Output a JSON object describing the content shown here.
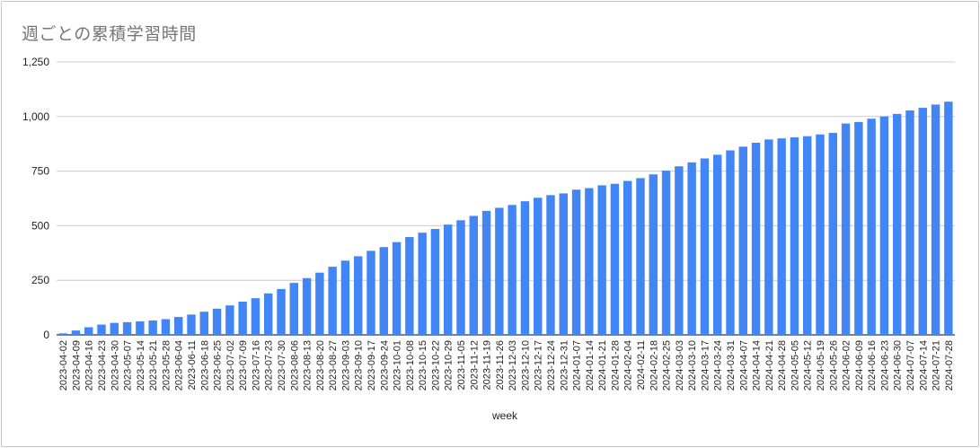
{
  "chart_data": {
    "type": "bar",
    "title": "週ごとの累積学習時間",
    "xlabel": "week",
    "ylabel": "",
    "ylim": [
      0,
      1250
    ],
    "yticks": [
      0,
      250,
      500,
      750,
      1000,
      1250
    ],
    "ytick_labels": [
      "0",
      "250",
      "500",
      "750",
      "1,000",
      "1,250"
    ],
    "grid": true,
    "legend": "none",
    "bar_color": "#4285f4",
    "categories": [
      "2023-04-02",
      "2023-04-09",
      "2023-04-16",
      "2023-04-23",
      "2023-04-30",
      "2023-05-07",
      "2023-05-14",
      "2023-05-21",
      "2023-05-28",
      "2023-06-04",
      "2023-06-11",
      "2023-06-18",
      "2023-06-25",
      "2023-07-02",
      "2023-07-09",
      "2023-07-16",
      "2023-07-23",
      "2023-07-30",
      "2023-08-06",
      "2023-08-13",
      "2023-08-20",
      "2023-08-27",
      "2023-09-03",
      "2023-09-10",
      "2023-09-17",
      "2023-09-24",
      "2023-10-01",
      "2023-10-08",
      "2023-10-15",
      "2023-10-22",
      "2023-10-29",
      "2023-11-05",
      "2023-11-12",
      "2023-11-19",
      "2023-11-26",
      "2023-12-03",
      "2023-12-10",
      "2023-12-17",
      "2023-12-24",
      "2023-12-31",
      "2024-01-07",
      "2024-01-14",
      "2024-01-21",
      "2024-01-28",
      "2024-02-04",
      "2024-02-11",
      "2024-02-18",
      "2024-02-25",
      "2024-03-03",
      "2024-03-10",
      "2024-03-17",
      "2024-03-24",
      "2024-03-31",
      "2024-04-07",
      "2024-04-14",
      "2024-04-21",
      "2024-04-28",
      "2024-05-05",
      "2024-05-12",
      "2024-05-19",
      "2024-05-26",
      "2024-06-02",
      "2024-06-09",
      "2024-06-16",
      "2024-06-23",
      "2024-06-30",
      "2024-07-07",
      "2024-07-14",
      "2024-07-21",
      "2024-07-28"
    ],
    "values": [
      7,
      20,
      35,
      47,
      55,
      58,
      62,
      66,
      72,
      82,
      93,
      106,
      120,
      135,
      152,
      168,
      190,
      210,
      238,
      260,
      285,
      312,
      340,
      360,
      385,
      402,
      425,
      448,
      468,
      485,
      505,
      525,
      545,
      568,
      582,
      595,
      612,
      628,
      640,
      648,
      665,
      672,
      685,
      692,
      705,
      718,
      735,
      752,
      772,
      790,
      808,
      825,
      845,
      862,
      880,
      895,
      900,
      905,
      910,
      918,
      925,
      968,
      975,
      990,
      1000,
      1012,
      1028,
      1040,
      1055,
      1068
    ]
  }
}
